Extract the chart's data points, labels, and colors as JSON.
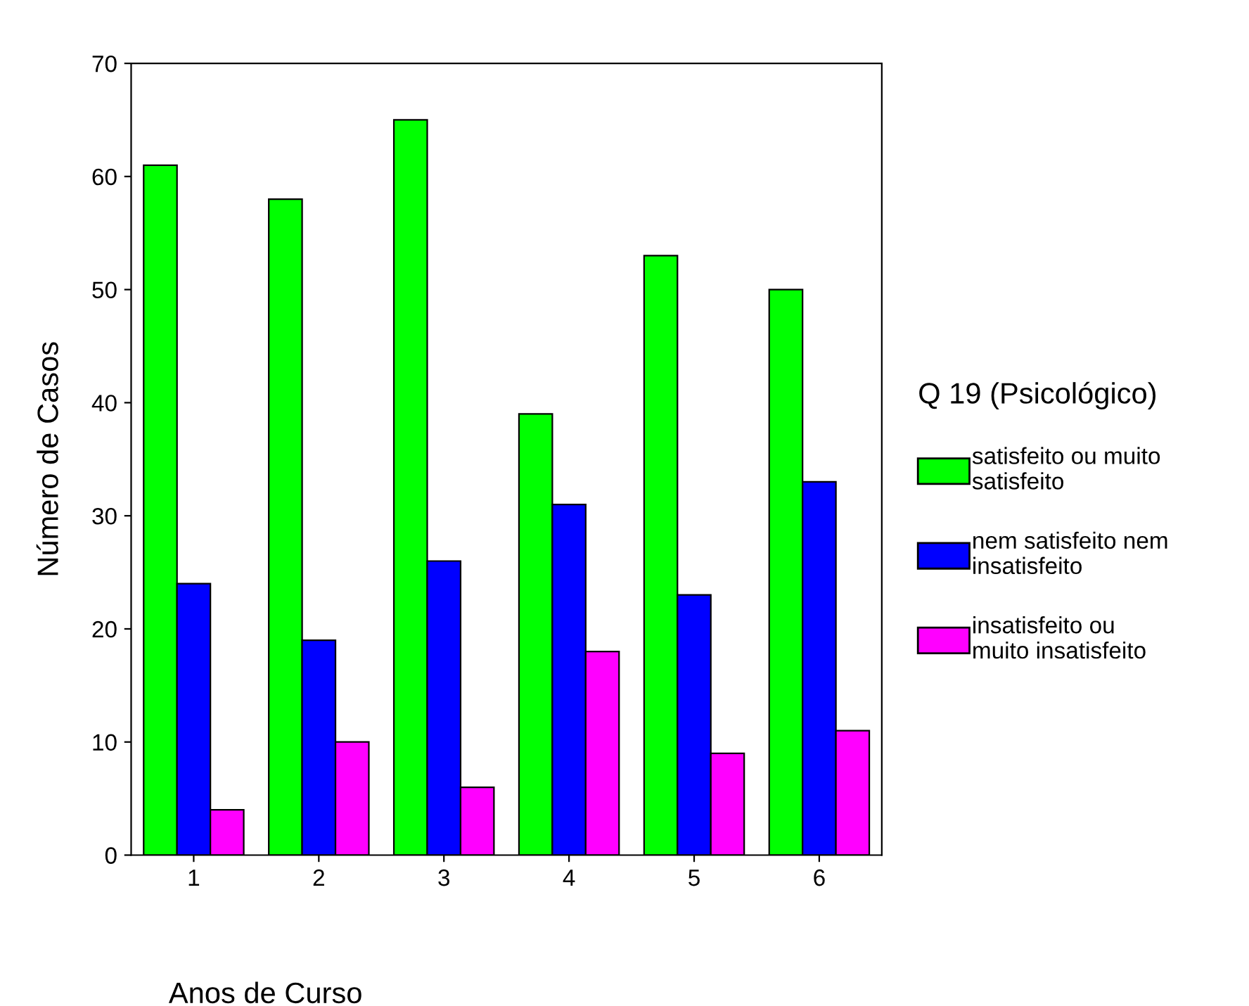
{
  "chart_data": {
    "type": "bar",
    "xlabel": "Anos de Curso",
    "ylabel": "Número de Casos",
    "legend_title": "Q 19 (Psicológico)",
    "categories": [
      "1",
      "2",
      "3",
      "4",
      "5",
      "6"
    ],
    "series": [
      {
        "name": "satisfeito ou muito\nsatisfeito",
        "color": "#00ff00",
        "values": [
          61,
          58,
          65,
          39,
          53,
          50
        ]
      },
      {
        "name": "nem satisfeito nem\ninsatisfeito",
        "color": "#0000ff",
        "values": [
          24,
          19,
          26,
          31,
          23,
          33
        ]
      },
      {
        "name": "insatisfeito ou\nmuito insatisfeito",
        "color": "#ff00ff",
        "values": [
          4,
          10,
          6,
          18,
          9,
          11
        ]
      }
    ],
    "ylim": [
      0,
      70
    ],
    "yticks": [
      0,
      10,
      20,
      30,
      40,
      50,
      60,
      70
    ],
    "grid": false,
    "legend": "right"
  }
}
